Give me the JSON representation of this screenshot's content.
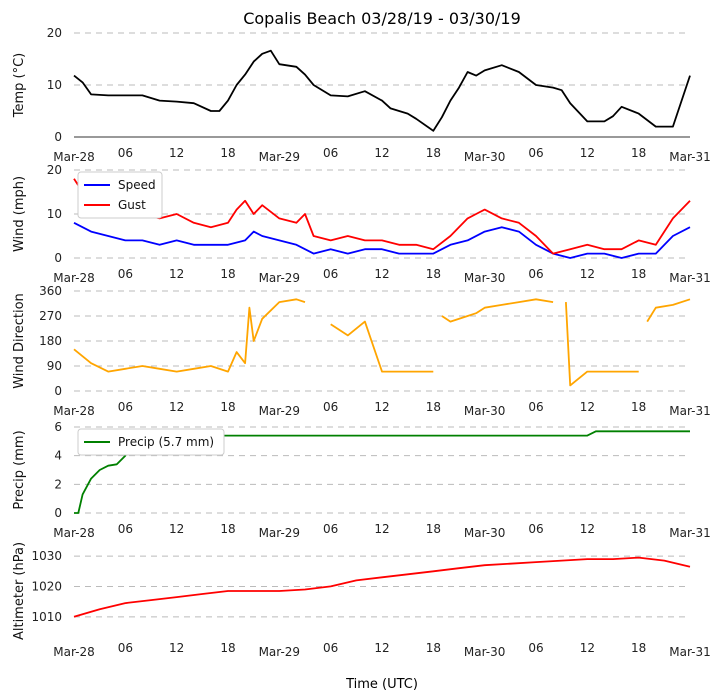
{
  "title": "Copalis Beach 03/28/19 - 03/30/19",
  "xlabel": "Time (UTC)",
  "x_ticks": [
    "Mar-28",
    "06",
    "12",
    "18",
    "Mar-29",
    "06",
    "12",
    "18",
    "Mar-30",
    "06",
    "12",
    "18",
    "Mar-31"
  ],
  "chart_data": [
    {
      "type": "line",
      "ylabel": "Temp (°C)",
      "ylim": [
        0,
        20
      ],
      "y_ticks": [
        "0",
        "10",
        "20"
      ],
      "grid": true,
      "x_unit": "hours since Mar-28 00 UTC",
      "series": [
        {
          "name": "",
          "color": "#000000",
          "x": [
            0,
            1,
            2,
            4,
            6,
            8,
            10,
            12,
            14,
            16,
            17,
            18,
            19,
            20,
            21,
            22,
            23,
            24,
            26,
            27,
            28,
            30,
            32,
            34,
            36,
            37,
            38,
            39,
            40,
            42,
            43,
            44,
            45,
            46,
            47,
            48,
            50,
            52,
            54,
            56,
            57,
            58,
            60,
            62,
            63,
            64,
            66,
            68,
            70,
            72
          ],
          "y": [
            11.8,
            10.5,
            8.2,
            8.0,
            8.0,
            8.0,
            7.0,
            6.8,
            6.5,
            5.0,
            5.0,
            7.0,
            10.0,
            12.0,
            14.5,
            16.0,
            16.6,
            14.0,
            13.5,
            12.0,
            10.0,
            8.0,
            7.8,
            8.8,
            7.0,
            5.5,
            5.0,
            4.5,
            3.5,
            1.2,
            3.8,
            7.0,
            9.5,
            12.5,
            11.8,
            12.8,
            13.8,
            12.5,
            10.0,
            9.5,
            9.0,
            6.5,
            3.0,
            3.0,
            4.0,
            5.8,
            4.5,
            2.0,
            2.0,
            11.8
          ]
        }
      ]
    },
    {
      "type": "line",
      "ylabel": "Wind (mph)",
      "ylim": [
        0,
        20
      ],
      "y_ticks": [
        "0",
        "10",
        "20"
      ],
      "grid": true,
      "legend": "top-left",
      "series": [
        {
          "name": "Speed",
          "color": "#0000ff",
          "x": [
            0,
            2,
            4,
            6,
            8,
            10,
            12,
            14,
            16,
            18,
            20,
            21,
            22,
            24,
            26,
            28,
            30,
            32,
            34,
            36,
            38,
            40,
            42,
            44,
            46,
            48,
            50,
            52,
            54,
            56,
            58,
            60,
            62,
            64,
            66,
            68,
            70,
            72
          ],
          "y": [
            8,
            6,
            5,
            4,
            4,
            3,
            4,
            3,
            3,
            3,
            4,
            6,
            5,
            4,
            3,
            1,
            2,
            1,
            2,
            2,
            1,
            1,
            1,
            3,
            4,
            6,
            7,
            6,
            3,
            1,
            0,
            1,
            1,
            0,
            1,
            1,
            5,
            7
          ]
        },
        {
          "name": "Gust",
          "color": "#ff0000",
          "x": [
            0,
            1,
            2,
            4,
            6,
            8,
            10,
            12,
            14,
            16,
            18,
            19,
            20,
            21,
            22,
            24,
            26,
            27,
            28,
            30,
            32,
            34,
            36,
            38,
            40,
            42,
            44,
            46,
            47,
            48,
            50,
            52,
            54,
            56,
            58,
            60,
            62,
            64,
            66,
            68,
            70,
            72
          ],
          "y": [
            18,
            15,
            13,
            12,
            11,
            10,
            9,
            10,
            8,
            7,
            8,
            11,
            13,
            10,
            12,
            9,
            8,
            10,
            5,
            4,
            5,
            4,
            4,
            3,
            3,
            2,
            5,
            9,
            10,
            11,
            9,
            8,
            5,
            1,
            2,
            3,
            2,
            2,
            4,
            3,
            9,
            13
          ]
        }
      ]
    },
    {
      "type": "line",
      "ylabel": "Wind Direction",
      "ylim": [
        0,
        360
      ],
      "y_ticks": [
        "0",
        "90",
        "180",
        "270",
        "360"
      ],
      "grid": true,
      "series": [
        {
          "name": "",
          "color": "#ffa500",
          "x": [
            0,
            2,
            4,
            6,
            8,
            10,
            12,
            14,
            16,
            18,
            19,
            20,
            20.5,
            21,
            22,
            24,
            26,
            27,
            28,
            30,
            32,
            34,
            36,
            38,
            40,
            42,
            42.5,
            43,
            44,
            46,
            47,
            48,
            50,
            52,
            54,
            56,
            57,
            57.5,
            58,
            60,
            62,
            64,
            66,
            66.5,
            67,
            68,
            70,
            72
          ],
          "y": [
            150,
            100,
            70,
            80,
            90,
            80,
            70,
            80,
            90,
            70,
            140,
            100,
            300,
            180,
            260,
            320,
            330,
            320,
            null,
            240,
            200,
            250,
            70,
            70,
            70,
            70,
            null,
            270,
            250,
            270,
            280,
            300,
            310,
            320,
            330,
            320,
            null,
            320,
            20,
            70,
            70,
            70,
            70,
            null,
            250,
            300,
            310,
            330
          ]
        }
      ]
    },
    {
      "type": "line",
      "ylabel": "Precip (mm)",
      "ylim": [
        0,
        6
      ],
      "y_ticks": [
        "0",
        "2",
        "4",
        "6"
      ],
      "grid": true,
      "legend": "top-left",
      "series": [
        {
          "name": "Precip (5.7 mm)",
          "color": "#008000",
          "x": [
            0,
            0.5,
            1,
            2,
            3,
            4,
            5,
            6,
            7,
            8,
            9,
            10,
            24,
            48,
            60,
            61,
            72
          ],
          "y": [
            0,
            0,
            1.3,
            2.4,
            3.0,
            3.3,
            3.4,
            4.0,
            5.1,
            5.3,
            5.4,
            5.4,
            5.4,
            5.4,
            5.4,
            5.7,
            5.7
          ]
        }
      ]
    },
    {
      "type": "line",
      "ylabel": "Altimeter (hPa)",
      "ylim": [
        1005,
        1032
      ],
      "y_ticks": [
        "1010",
        "1020",
        "1030"
      ],
      "grid": true,
      "series": [
        {
          "name": "",
          "color": "#ff0000",
          "x": [
            0,
            3,
            6,
            9,
            12,
            15,
            18,
            21,
            24,
            27,
            30,
            33,
            36,
            39,
            42,
            45,
            48,
            51,
            54,
            57,
            60,
            63,
            66,
            69,
            72
          ],
          "y": [
            1010,
            1012.5,
            1014.5,
            1015.5,
            1016.5,
            1017.5,
            1018.5,
            1018.5,
            1018.5,
            1019,
            1020,
            1022,
            1023,
            1024,
            1025,
            1026,
            1027,
            1027.5,
            1028,
            1028.5,
            1029,
            1029,
            1029.5,
            1028.5,
            1026.5
          ]
        }
      ]
    }
  ]
}
